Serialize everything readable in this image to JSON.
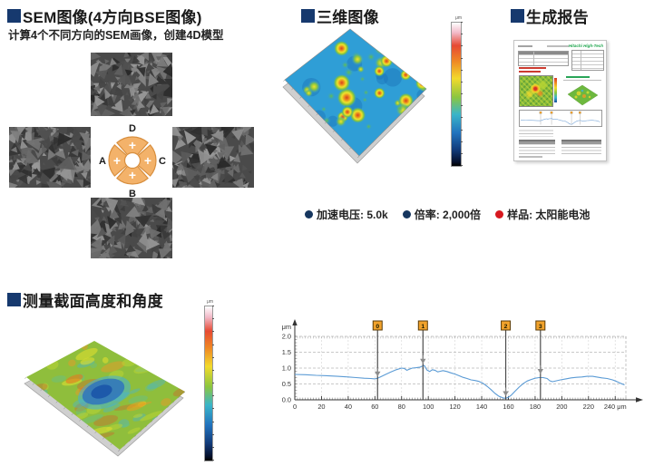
{
  "colors": {
    "accent_navy": "#16396e",
    "heading_text": "#1a1a1a",
    "donut_orange": "#f3b26a",
    "donut_border": "#d88f3f",
    "marker_orange": "#f1a22b",
    "marker_border": "#5c3c08",
    "profile_line_blue": "#5b9bd5",
    "report_logo_green": "#1ea54d",
    "bullet_navy": "#16365f",
    "bullet_red": "#d7181f"
  },
  "sections": {
    "sem": {
      "title": "SEM图像(4方向BSE图像)",
      "subtitle": "计算4个不同方向的SEM画像，创建4D模型",
      "detectors": {
        "top": "D",
        "left": "A",
        "right": "C",
        "bottom": "B"
      },
      "segment_symbol": "+"
    },
    "three_d": {
      "title": "三维图像",
      "colorbar_unit": "μm",
      "bullets": [
        {
          "text": "加速电压: 5.0k",
          "dot_color": "#16365f"
        },
        {
          "text": "倍率: 2,000倍",
          "dot_color": "#16365f"
        },
        {
          "text": "样品: 太阳能电池",
          "dot_color": "#d7181f"
        }
      ]
    },
    "report": {
      "title": "生成报告",
      "logo": "Hitachi High-Tech"
    },
    "cross_section": {
      "title": "测量截面高度和角度",
      "colorbar_unit": "μm"
    }
  },
  "chart_data": {
    "type": "line",
    "title": "",
    "ylabel": "μm",
    "x_unit": "μm",
    "xlim": [
      0,
      248
    ],
    "ylim": [
      0,
      2.0
    ],
    "x_ticks": [
      0,
      20,
      40,
      60,
      80,
      100,
      120,
      140,
      160,
      180,
      200,
      220,
      240
    ],
    "y_ticks": [
      0.0,
      0.5,
      1.0,
      1.5,
      2.0
    ],
    "grid": true,
    "legend": "none",
    "line_color": "#5b9bd5",
    "markers": [
      {
        "label": "0",
        "x": 62,
        "arrow_y": 0.72
      },
      {
        "label": "1",
        "x": 96,
        "arrow_y": 1.12
      },
      {
        "label": "2",
        "x": 158,
        "arrow_y": 0.1
      },
      {
        "label": "3",
        "x": 184,
        "arrow_y": 0.8
      }
    ],
    "profile": [
      [
        0,
        0.8
      ],
      [
        8,
        0.79
      ],
      [
        16,
        0.77
      ],
      [
        24,
        0.76
      ],
      [
        32,
        0.74
      ],
      [
        40,
        0.72
      ],
      [
        46,
        0.7
      ],
      [
        52,
        0.68
      ],
      [
        57,
        0.67
      ],
      [
        60,
        0.66
      ],
      [
        62,
        0.68
      ],
      [
        65,
        0.74
      ],
      [
        68,
        0.8
      ],
      [
        72,
        0.88
      ],
      [
        76,
        0.95
      ],
      [
        80,
        1.0
      ],
      [
        82,
        0.99
      ],
      [
        84,
        0.93
      ],
      [
        86,
        0.97
      ],
      [
        88,
        1.0
      ],
      [
        91,
        1.01
      ],
      [
        94,
        1.03
      ],
      [
        96,
        1.07
      ],
      [
        97,
        1.08
      ],
      [
        99,
        0.94
      ],
      [
        101,
        0.89
      ],
      [
        103,
        0.95
      ],
      [
        105,
        0.93
      ],
      [
        107,
        0.88
      ],
      [
        109,
        0.9
      ],
      [
        111,
        0.92
      ],
      [
        114,
        0.89
      ],
      [
        117,
        0.85
      ],
      [
        120,
        0.81
      ],
      [
        123,
        0.76
      ],
      [
        126,
        0.71
      ],
      [
        129,
        0.67
      ],
      [
        132,
        0.63
      ],
      [
        135,
        0.61
      ],
      [
        138,
        0.58
      ],
      [
        141,
        0.52
      ],
      [
        144,
        0.43
      ],
      [
        147,
        0.32
      ],
      [
        150,
        0.2
      ],
      [
        153,
        0.11
      ],
      [
        156,
        0.06
      ],
      [
        158,
        0.05
      ],
      [
        160,
        0.08
      ],
      [
        162,
        0.14
      ],
      [
        165,
        0.27
      ],
      [
        168,
        0.4
      ],
      [
        171,
        0.51
      ],
      [
        174,
        0.59
      ],
      [
        177,
        0.64
      ],
      [
        180,
        0.68
      ],
      [
        183,
        0.7
      ],
      [
        186,
        0.7
      ],
      [
        189,
        0.67
      ],
      [
        191,
        0.6
      ],
      [
        193,
        0.57
      ],
      [
        196,
        0.6
      ],
      [
        199,
        0.63
      ],
      [
        203,
        0.66
      ],
      [
        207,
        0.69
      ],
      [
        211,
        0.71
      ],
      [
        215,
        0.72
      ],
      [
        219,
        0.74
      ],
      [
        223,
        0.74
      ],
      [
        226,
        0.72
      ],
      [
        230,
        0.69
      ],
      [
        234,
        0.67
      ],
      [
        238,
        0.63
      ],
      [
        241,
        0.58
      ],
      [
        244,
        0.52
      ],
      [
        247,
        0.47
      ]
    ]
  }
}
